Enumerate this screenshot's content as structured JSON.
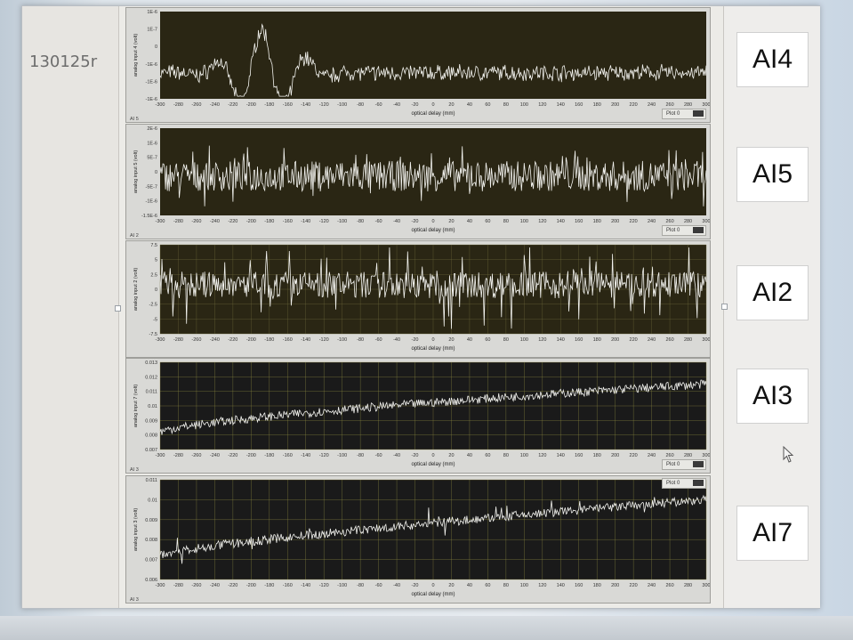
{
  "window": {
    "run_id": "130125r"
  },
  "x_axis": {
    "label": "optical delay (mm)",
    "ticks": [
      "-300",
      "-280",
      "-260",
      "-240",
      "-220",
      "-200",
      "-180",
      "-160",
      "-140",
      "-120",
      "-100",
      "-80",
      "-60",
      "-40",
      "-20",
      "0",
      "20",
      "40",
      "60",
      "80",
      "100",
      "120",
      "140",
      "160",
      "180",
      "200",
      "220",
      "240",
      "260",
      "280",
      "300"
    ]
  },
  "colors": {
    "plot_bg_1": "#2a2614",
    "plot_bg_2": "#1a1a1a",
    "trace": "#f2f2ee",
    "grid": "#6d6a3c",
    "grid_yellow": "#8c8740"
  },
  "graphs": [
    {
      "id": "ai4",
      "tag": "AI4",
      "ylabel": "analog input 4 (volt)",
      "graph_name": "AI 5",
      "legend": "Plot 0",
      "yticks": [
        "1E-6",
        "1E-7",
        "0",
        "-1E-6",
        "-1E-6",
        "-1E-6"
      ],
      "pattern": "burst",
      "ylim": [
        -1.5,
        1.5
      ]
    },
    {
      "id": "ai5",
      "tag": "AI5",
      "ylabel": "analog input 5 (volt)",
      "graph_name": "AI 2",
      "legend": "Plot 0",
      "yticks": [
        "2E-6",
        "1E-6",
        "5E-7",
        "0",
        "-5E-7",
        "-1E-6",
        "-1.5E-6"
      ],
      "pattern": "noise",
      "ylim": [
        -1.5,
        2
      ]
    },
    {
      "id": "ai2",
      "tag": "AI2",
      "ylabel": "analog input 2 (volt)",
      "graph_name": "",
      "legend": "",
      "yticks": [
        "7.5",
        "5",
        "2.5",
        "0",
        "-2.5",
        "-5",
        "-7.5"
      ],
      "pattern": "spiky",
      "ylim": [
        -10,
        10
      ]
    },
    {
      "id": "ai3",
      "tag": "AI3",
      "ylabel": "analog input 7 (volt)",
      "graph_name": "AI 3",
      "legend": "Plot 0",
      "yticks": [
        "0.013",
        "0.012",
        "0.011",
        "0.01",
        "0.009",
        "0.008",
        "0.007"
      ],
      "pattern": "rising",
      "ylim": [
        0.007,
        0.013
      ]
    },
    {
      "id": "ai7",
      "tag": "AI7",
      "ylabel": "analog input 3 (volt)",
      "graph_name": "AI 3",
      "legend": "Plot 0",
      "yticks": [
        "0.011",
        "0.01",
        "0.009",
        "0.008",
        "0.007",
        "0.006"
      ],
      "pattern": "rising2",
      "ylim": [
        0.006,
        0.011
      ]
    }
  ]
}
